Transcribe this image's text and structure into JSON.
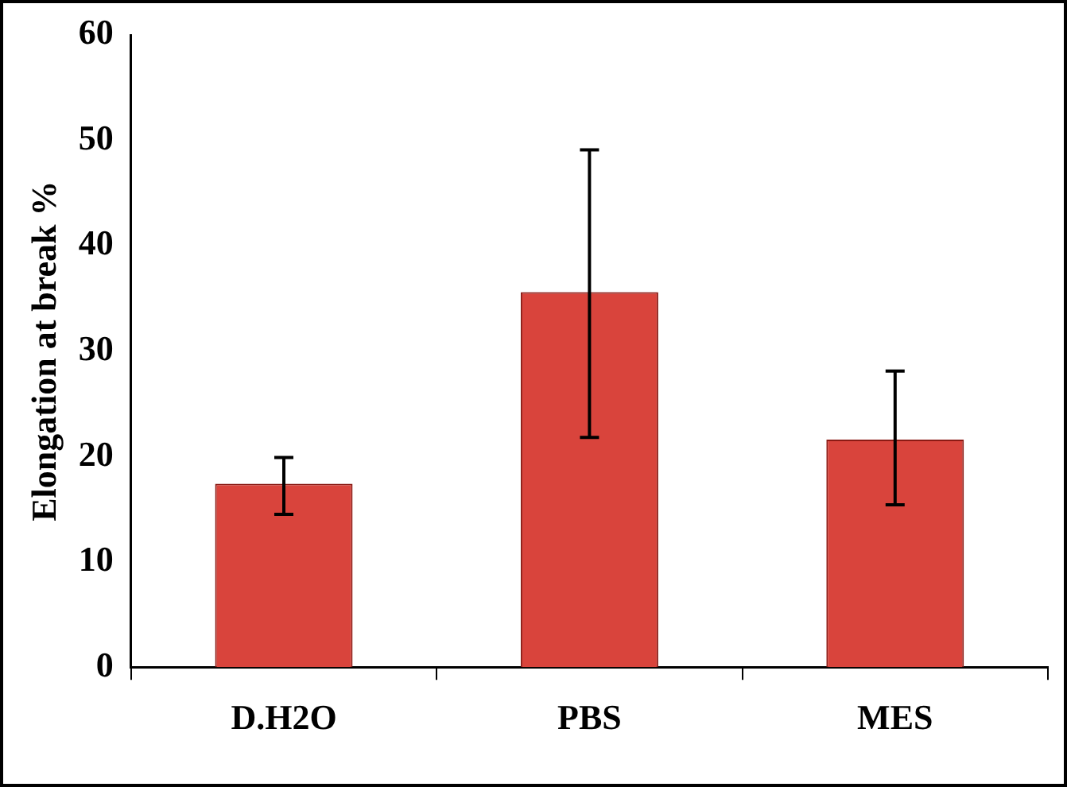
{
  "chart_data": {
    "type": "bar",
    "ylabel": "Elongation at break %",
    "categories": [
      "D.H2O",
      "PBS",
      "MES"
    ],
    "values": [
      17.4,
      35.6,
      21.6
    ],
    "color": "#d9443c",
    "errors": [
      [
        14.5,
        19.9
      ],
      [
        21.8,
        49.1
      ],
      [
        15.4,
        28.1
      ]
    ],
    "ylim": [
      0,
      60
    ],
    "yticks": [
      0,
      10,
      20,
      30,
      40,
      50,
      60
    ],
    "grid": false,
    "legend": false
  }
}
